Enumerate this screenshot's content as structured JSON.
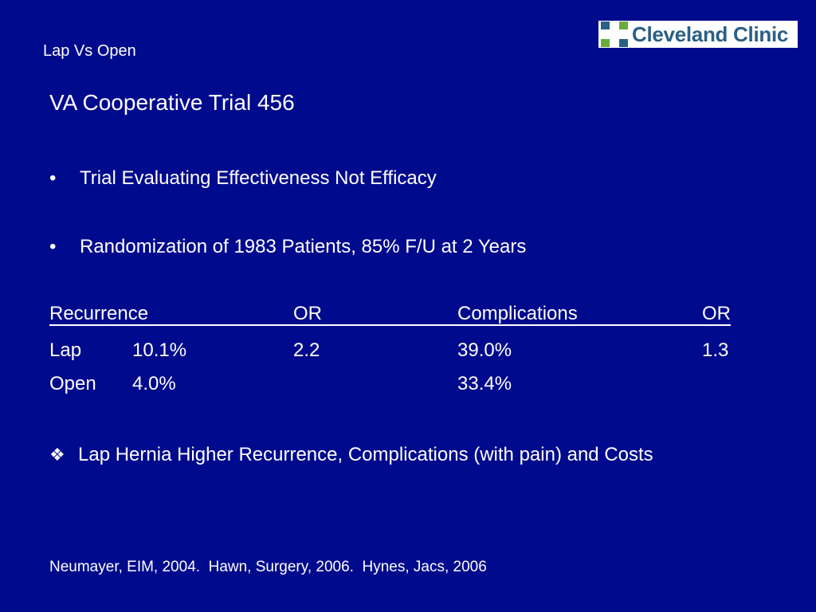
{
  "header": {
    "section_title": "Lap Vs Open",
    "logo_text": "Cleveland Clinic"
  },
  "slide": {
    "heading": "VA Cooperative Trial 456",
    "bullets": [
      {
        "marker": "•",
        "text": "Trial Evaluating Effectiveness Not Efficacy"
      },
      {
        "marker": "•",
        "text": "Randomization of 1983 Patients, 85% F/U at 2 Years"
      }
    ],
    "table": {
      "headers": [
        "Recurrence",
        "OR",
        "Complications",
        "OR"
      ],
      "rows": [
        {
          "group": "Lap",
          "recurrence": "10.1%",
          "recurrence_or": "2.2",
          "complications": "39.0%",
          "complications_or": "1.3"
        },
        {
          "group": "Open",
          "recurrence": "4.0%",
          "recurrence_or": "",
          "complications": "33.4%",
          "complications_or": ""
        }
      ]
    },
    "key_point": {
      "marker": "❖",
      "text": "Lap Hernia Higher Recurrence, Complications (with pain) and Costs"
    },
    "references": "Neumayer, EIM, 2004.  Hawn, Surgery, 2006.  Hynes, Jacs, 2006"
  },
  "colors": {
    "background": "#000a8c",
    "text": "#ffffff",
    "logo_blue": "#2a5f86",
    "logo_green": "#6aab3c"
  },
  "icons": {
    "logo_mark": "cleveland-clinic-cross-icon"
  }
}
